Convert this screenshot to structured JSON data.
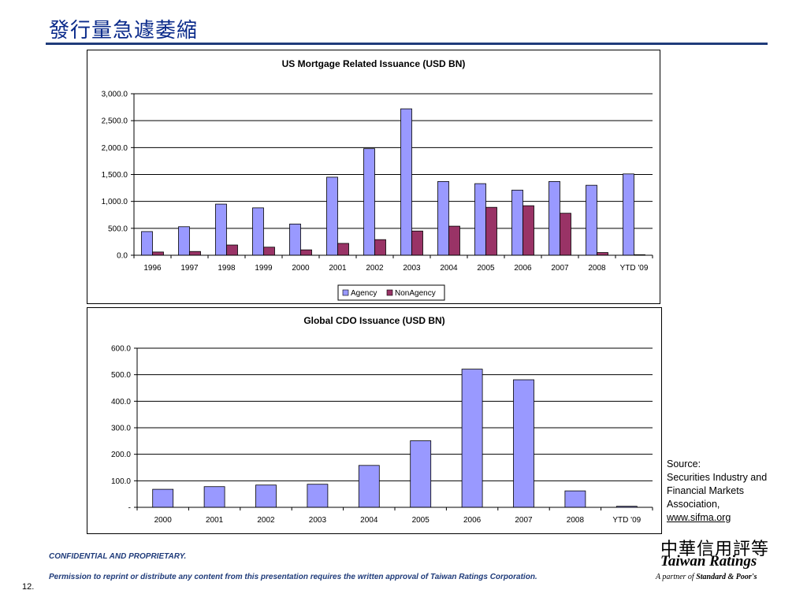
{
  "page": {
    "title": "發行量急遽萎縮",
    "page_number": "12.",
    "confidential": "CONFIDENTIAL AND PROPRIETARY.",
    "permission": "Permission to reprint or distribute any content from this presentation requires the written approval of Taiwan Ratings Corporation.",
    "source_label": "Source:",
    "source_text": "Securities Industry and Financial Markets Association,",
    "source_link": "www.sifma.org",
    "logo": {
      "chinese": "中華信用評等",
      "name": "Taiwan Ratings",
      "partner_prefix": "A partner of",
      "partner_name": "Standard & Poor's"
    }
  },
  "colors": {
    "agency": "#9999ff",
    "nonagency": "#993366",
    "title": "#0a2a8a",
    "rule": "#1f3b7a"
  },
  "chart_data": [
    {
      "type": "bar",
      "title": "US Mortgage Related Issuance (USD BN)",
      "categories": [
        "1996",
        "1997",
        "1998",
        "1999",
        "2000",
        "2001",
        "2002",
        "2003",
        "2004",
        "2005",
        "2006",
        "2007",
        "2008",
        "YTD '09"
      ],
      "series": [
        {
          "name": "Agency",
          "values": [
            440,
            530,
            950,
            880,
            580,
            1450,
            1980,
            2720,
            1370,
            1330,
            1210,
            1370,
            1300,
            1510
          ]
        },
        {
          "name": "NonAgency",
          "values": [
            60,
            70,
            190,
            150,
            100,
            220,
            290,
            450,
            540,
            890,
            920,
            780,
            50,
            10
          ]
        }
      ],
      "yticks": [
        "0.0",
        "500.0",
        "1,000.0",
        "1,500.0",
        "2,000.0",
        "2,500.0",
        "3,000.0"
      ],
      "ylim": [
        0,
        3000
      ],
      "legend": "bottom-center",
      "grid": true
    },
    {
      "type": "bar",
      "title": "Global CDO Issuance (USD BN)",
      "categories": [
        "2000",
        "2001",
        "2002",
        "2003",
        "2004",
        "2005",
        "2006",
        "2007",
        "2008",
        "YTD '09"
      ],
      "series": [
        {
          "name": "",
          "values": [
            68,
            78,
            84,
            87,
            158,
            251,
            521,
            481,
            62,
            4
          ]
        }
      ],
      "yticks": [
        "-",
        "100.0",
        "200.0",
        "300.0",
        "400.0",
        "500.0",
        "600.0"
      ],
      "ylim": [
        0,
        600
      ],
      "grid": true
    }
  ]
}
